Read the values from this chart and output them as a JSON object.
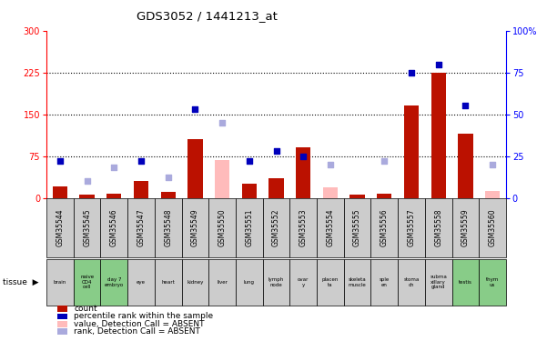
{
  "title": "GDS3052 / 1441213_at",
  "samples": [
    "GSM35544",
    "GSM35545",
    "GSM35546",
    "GSM35547",
    "GSM35548",
    "GSM35549",
    "GSM35550",
    "GSM35551",
    "GSM35552",
    "GSM35553",
    "GSM35554",
    "GSM35555",
    "GSM35556",
    "GSM35557",
    "GSM35558",
    "GSM35559",
    "GSM35560"
  ],
  "tissues": [
    "brain",
    "naive\nCD4\ncell",
    "day 7\nembryо",
    "eye",
    "heart",
    "kidney",
    "liver",
    "lung",
    "lymph\nnode",
    "ovar\ny",
    "placen\nta",
    "skeleta\nmuscle",
    "sple\nen",
    "stoma\nch",
    "subma\nxillary\ngland",
    "testis",
    "thym\nus"
  ],
  "tissue_green": [
    false,
    true,
    true,
    false,
    false,
    false,
    false,
    false,
    false,
    false,
    false,
    false,
    false,
    false,
    false,
    true,
    true
  ],
  "count_present": [
    20,
    5,
    8,
    30,
    10,
    105,
    0,
    25,
    35,
    90,
    0,
    5,
    8,
    165,
    225,
    115,
    0
  ],
  "count_absent": [
    0,
    0,
    0,
    0,
    0,
    0,
    68,
    0,
    0,
    0,
    18,
    0,
    0,
    0,
    0,
    0,
    12
  ],
  "rank_present": [
    22,
    0,
    0,
    22,
    0,
    53,
    0,
    22,
    28,
    25,
    0,
    0,
    0,
    75,
    80,
    55,
    0
  ],
  "rank_absent": [
    0,
    10,
    18,
    0,
    12,
    0,
    45,
    0,
    0,
    0,
    20,
    0,
    22,
    0,
    0,
    0,
    20
  ],
  "ylim_left": [
    0,
    300
  ],
  "ylim_right": [
    0,
    100
  ],
  "yticks_left": [
    0,
    75,
    150,
    225,
    300
  ],
  "yticks_right": [
    0,
    25,
    50,
    75,
    100
  ],
  "colors": {
    "count_bar": "#bb1100",
    "count_absent_bar": "#ffbbbb",
    "rank_dot": "#0000bb",
    "rank_absent_dot": "#aaaadd",
    "tissue_green_bg": "#88cc88",
    "tissue_gray_bg": "#cccccc",
    "gsm_bg": "#cccccc",
    "plot_bg": "#ffffff"
  },
  "legend": [
    {
      "label": "count",
      "color": "#bb1100"
    },
    {
      "label": "percentile rank within the sample",
      "color": "#0000bb"
    },
    {
      "label": "value, Detection Call = ABSENT",
      "color": "#ffbbbb"
    },
    {
      "label": "rank, Detection Call = ABSENT",
      "color": "#aaaadd"
    }
  ]
}
